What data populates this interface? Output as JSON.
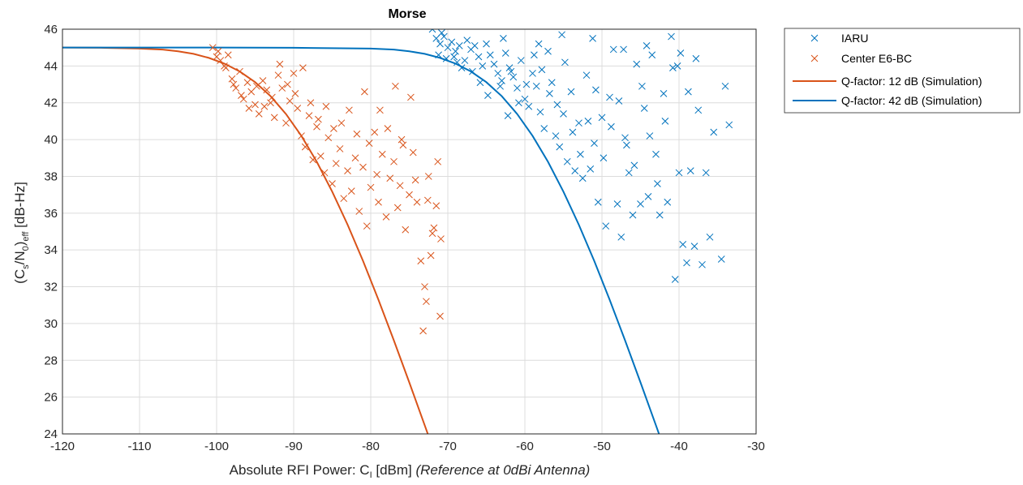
{
  "chart_data": {
    "type": "scatter",
    "title": "Morse",
    "xlabel": {
      "main": "Absolute RFI Power: C",
      "sub": "I",
      "unit": " [dBm] ",
      "note": "(Reference at 0dBi Antenna)"
    },
    "ylabel": {
      "c": "(C",
      "c_sub": "s",
      "mid": "/N",
      "n_sub": "0",
      "close": ")",
      "eff_sub": "eff",
      "unit": " [dB-Hz]"
    },
    "xlim": [
      -120,
      -30
    ],
    "ylim": [
      24,
      46
    ],
    "xticks": [
      -120,
      -110,
      -100,
      -90,
      -80,
      -70,
      -60,
      -50,
      -40,
      -30
    ],
    "yticks": [
      24,
      26,
      28,
      30,
      32,
      34,
      36,
      38,
      40,
      42,
      44,
      46
    ],
    "grid": true,
    "legend_position": "outside-top-right",
    "series": [
      {
        "name": "IARU",
        "kind": "scatter",
        "marker": "x",
        "color": "#0072BD",
        "points": [
          [
            -72,
            46
          ],
          [
            -71.5,
            45.5
          ],
          [
            -71,
            45.2
          ],
          [
            -70.5,
            45.6
          ],
          [
            -70,
            45.0
          ],
          [
            -69.5,
            45.3
          ],
          [
            -69,
            44.8
          ],
          [
            -68.5,
            45.1
          ],
          [
            -71.2,
            44.6
          ],
          [
            -70.2,
            44.4
          ],
          [
            -68.8,
            44.2
          ],
          [
            -67.5,
            45.4
          ],
          [
            -67,
            44.9
          ],
          [
            -66.5,
            45.1
          ],
          [
            -66,
            44.5
          ],
          [
            -65.5,
            44.0
          ],
          [
            -65,
            45.2
          ],
          [
            -64.5,
            44.6
          ],
          [
            -64,
            44.1
          ],
          [
            -63.5,
            43.6
          ],
          [
            -63,
            43.2
          ],
          [
            -62.5,
            44.7
          ],
          [
            -62,
            43.9
          ],
          [
            -61.5,
            43.4
          ],
          [
            -61,
            42.8
          ],
          [
            -60.5,
            44.3
          ],
          [
            -60,
            42.2
          ],
          [
            -59.5,
            41.8
          ],
          [
            -59,
            43.6
          ],
          [
            -58.5,
            42.9
          ],
          [
            -58,
            41.5
          ],
          [
            -57.5,
            40.6
          ],
          [
            -57,
            44.8
          ],
          [
            -56.5,
            43.1
          ],
          [
            -56,
            40.2
          ],
          [
            -55.5,
            39.6
          ],
          [
            -55,
            41.4
          ],
          [
            -54.5,
            38.8
          ],
          [
            -54,
            42.6
          ],
          [
            -53.5,
            38.3
          ],
          [
            -53,
            40.9
          ],
          [
            -52.5,
            37.9
          ],
          [
            -52,
            43.5
          ],
          [
            -51.5,
            38.4
          ],
          [
            -51,
            39.8
          ],
          [
            -50.5,
            36.6
          ],
          [
            -50,
            41.2
          ],
          [
            -49.5,
            35.3
          ],
          [
            -49,
            42.3
          ],
          [
            -48.5,
            44.9
          ],
          [
            -48,
            36.5
          ],
          [
            -47.5,
            34.7
          ],
          [
            -47,
            40.1
          ],
          [
            -46.5,
            38.2
          ],
          [
            -46,
            35.9
          ],
          [
            -45.5,
            44.1
          ],
          [
            -45,
            36.5
          ],
          [
            -44.5,
            41.7
          ],
          [
            -44,
            36.9
          ],
          [
            -43.5,
            44.6
          ],
          [
            -43,
            39.2
          ],
          [
            -42.5,
            35.9
          ],
          [
            -42,
            42.5
          ],
          [
            -41.5,
            36.6
          ],
          [
            -41,
            45.6
          ],
          [
            -40.5,
            32.4
          ],
          [
            -40,
            38.2
          ],
          [
            -39.5,
            34.3
          ],
          [
            -39,
            33.3
          ],
          [
            -38.5,
            38.3
          ],
          [
            -38,
            34.2
          ],
          [
            -37.5,
            41.6
          ],
          [
            -37,
            33.2
          ],
          [
            -36.5,
            38.2
          ],
          [
            -36,
            34.7
          ],
          [
            -35.5,
            40.4
          ],
          [
            -34.5,
            33.5
          ],
          [
            -34,
            42.9
          ],
          [
            -33.5,
            40.8
          ],
          [
            -38.8,
            42.6
          ],
          [
            -37.8,
            44.4
          ],
          [
            -63.2,
            42.9
          ],
          [
            -62.2,
            41.3
          ],
          [
            -61.8,
            43.7
          ],
          [
            -60.8,
            42.0
          ],
          [
            -59.8,
            43.0
          ],
          [
            -58.8,
            44.6
          ],
          [
            -57.8,
            43.8
          ],
          [
            -56.8,
            42.5
          ],
          [
            -55.8,
            41.9
          ],
          [
            -54.8,
            44.2
          ],
          [
            -53.8,
            40.4
          ],
          [
            -52.8,
            39.2
          ],
          [
            -51.8,
            41.0
          ],
          [
            -50.8,
            42.7
          ],
          [
            -49.8,
            39.0
          ],
          [
            -48.8,
            40.7
          ],
          [
            -47.8,
            42.1
          ],
          [
            -46.8,
            39.7
          ],
          [
            -45.8,
            38.6
          ],
          [
            -44.8,
            42.9
          ],
          [
            -43.8,
            40.2
          ],
          [
            -42.8,
            37.6
          ],
          [
            -41.8,
            41.0
          ],
          [
            -40.8,
            43.9
          ],
          [
            -39.8,
            44.7
          ],
          [
            -66.8,
            43.7
          ],
          [
            -65.8,
            43.1
          ],
          [
            -64.8,
            42.4
          ],
          [
            -67.8,
            44.3
          ],
          [
            -68.2,
            43.9
          ],
          [
            -69.2,
            44.5
          ],
          [
            -70.8,
            45.8
          ],
          [
            -62.8,
            45.5
          ],
          [
            -58.2,
            45.2
          ],
          [
            -55.2,
            45.7
          ],
          [
            -51.2,
            45.5
          ],
          [
            -47.2,
            44.9
          ],
          [
            -44.2,
            45.1
          ],
          [
            -40.2,
            44.0
          ]
        ]
      },
      {
        "name": "Center E6-BC",
        "kind": "scatter",
        "marker": "x",
        "color": "#D95319",
        "points": [
          [
            -100.5,
            45.0
          ],
          [
            -100,
            44.5
          ],
          [
            -99.5,
            44.3
          ],
          [
            -99,
            44.0
          ],
          [
            -98.5,
            44.6
          ],
          [
            -98,
            43.3
          ],
          [
            -97.5,
            42.8
          ],
          [
            -97,
            43.7
          ],
          [
            -96.5,
            42.2
          ],
          [
            -96,
            43.1
          ],
          [
            -95.5,
            42.6
          ],
          [
            -95,
            41.9
          ],
          [
            -94.5,
            41.4
          ],
          [
            -94,
            43.2
          ],
          [
            -93.5,
            42.7
          ],
          [
            -93,
            42.0
          ],
          [
            -92.5,
            41.2
          ],
          [
            -92,
            43.5
          ],
          [
            -91.5,
            42.8
          ],
          [
            -91,
            40.9
          ],
          [
            -90.5,
            42.1
          ],
          [
            -90,
            43.6
          ],
          [
            -89.5,
            41.7
          ],
          [
            -89,
            40.2
          ],
          [
            -88.5,
            39.6
          ],
          [
            -88,
            41.3
          ],
          [
            -87.5,
            38.9
          ],
          [
            -87,
            40.7
          ],
          [
            -86.5,
            39.1
          ],
          [
            -86,
            38.2
          ],
          [
            -85.5,
            40.1
          ],
          [
            -85,
            37.6
          ],
          [
            -84.5,
            38.7
          ],
          [
            -84,
            39.5
          ],
          [
            -83.5,
            36.8
          ],
          [
            -83,
            38.3
          ],
          [
            -82.5,
            37.2
          ],
          [
            -82,
            39.0
          ],
          [
            -81.5,
            36.1
          ],
          [
            -81,
            38.5
          ],
          [
            -80.5,
            35.3
          ],
          [
            -80,
            37.4
          ],
          [
            -79.5,
            40.4
          ],
          [
            -79,
            36.6
          ],
          [
            -78.5,
            39.2
          ],
          [
            -78,
            35.8
          ],
          [
            -77.5,
            37.9
          ],
          [
            -77,
            38.8
          ],
          [
            -76.5,
            36.3
          ],
          [
            -76,
            40.0
          ],
          [
            -75.5,
            35.1
          ],
          [
            -75,
            37.0
          ],
          [
            -74.5,
            39.3
          ],
          [
            -74,
            36.6
          ],
          [
            -73.5,
            33.4
          ],
          [
            -73,
            32.0
          ],
          [
            -72.5,
            38.0
          ],
          [
            -72,
            34.9
          ],
          [
            -71.5,
            36.4
          ],
          [
            -71,
            30.4
          ],
          [
            -73.2,
            29.6
          ],
          [
            -72.8,
            31.2
          ],
          [
            -72.2,
            33.7
          ],
          [
            -71.8,
            35.2
          ],
          [
            -74.8,
            42.3
          ],
          [
            -76.8,
            42.9
          ],
          [
            -80.8,
            42.6
          ],
          [
            -78.8,
            41.6
          ],
          [
            -77.8,
            40.6
          ],
          [
            -75.8,
            39.7
          ],
          [
            -99.8,
            44.8
          ],
          [
            -98.8,
            43.9
          ],
          [
            -97.8,
            43.0
          ],
          [
            -96.8,
            42.4
          ],
          [
            -95.8,
            41.7
          ],
          [
            -94.8,
            42.9
          ],
          [
            -93.8,
            41.8
          ],
          [
            -92.8,
            42.3
          ],
          [
            -91.8,
            44.1
          ],
          [
            -90.8,
            43.0
          ],
          [
            -89.8,
            42.5
          ],
          [
            -88.8,
            43.9
          ],
          [
            -87.8,
            42.0
          ],
          [
            -86.8,
            41.1
          ],
          [
            -85.8,
            41.8
          ],
          [
            -84.8,
            40.6
          ],
          [
            -83.8,
            40.9
          ],
          [
            -82.8,
            41.6
          ],
          [
            -81.8,
            40.3
          ],
          [
            -80.2,
            39.8
          ],
          [
            -79.2,
            38.1
          ],
          [
            -76.2,
            37.5
          ],
          [
            -74.2,
            37.8
          ],
          [
            -72.6,
            36.7
          ],
          [
            -71.3,
            38.8
          ],
          [
            -70.9,
            34.6
          ]
        ]
      },
      {
        "name": "Q-factor: 12 dB (Simulation)",
        "kind": "line",
        "color": "#D95319",
        "x": [
          -120,
          -115,
          -110,
          -107,
          -105,
          -103,
          -101,
          -99,
          -97,
          -95,
          -93,
          -91,
          -89,
          -87,
          -85,
          -83,
          -81,
          -79,
          -77,
          -75,
          -73,
          -72
        ],
        "y": [
          45.0,
          44.99,
          44.95,
          44.89,
          44.8,
          44.66,
          44.44,
          44.13,
          43.7,
          43.12,
          42.36,
          41.39,
          40.2,
          38.79,
          37.17,
          35.37,
          33.4,
          31.29,
          29.08,
          26.8,
          24.47,
          23.3
        ]
      },
      {
        "name": "Q-factor: 42 dB (Simulation)",
        "kind": "line",
        "color": "#0072BD",
        "x": [
          -120,
          -100,
          -90,
          -80,
          -77,
          -75,
          -73,
          -71,
          -69,
          -67,
          -65,
          -63,
          -61,
          -59,
          -57,
          -55,
          -53,
          -51,
          -49,
          -47,
          -45,
          -43,
          -42
        ],
        "y": [
          45.0,
          45.0,
          44.99,
          44.95,
          44.89,
          44.8,
          44.66,
          44.44,
          44.13,
          43.7,
          43.12,
          42.36,
          41.39,
          40.2,
          38.79,
          37.17,
          35.37,
          33.4,
          31.29,
          29.08,
          26.8,
          24.47,
          23.3
        ]
      }
    ]
  }
}
